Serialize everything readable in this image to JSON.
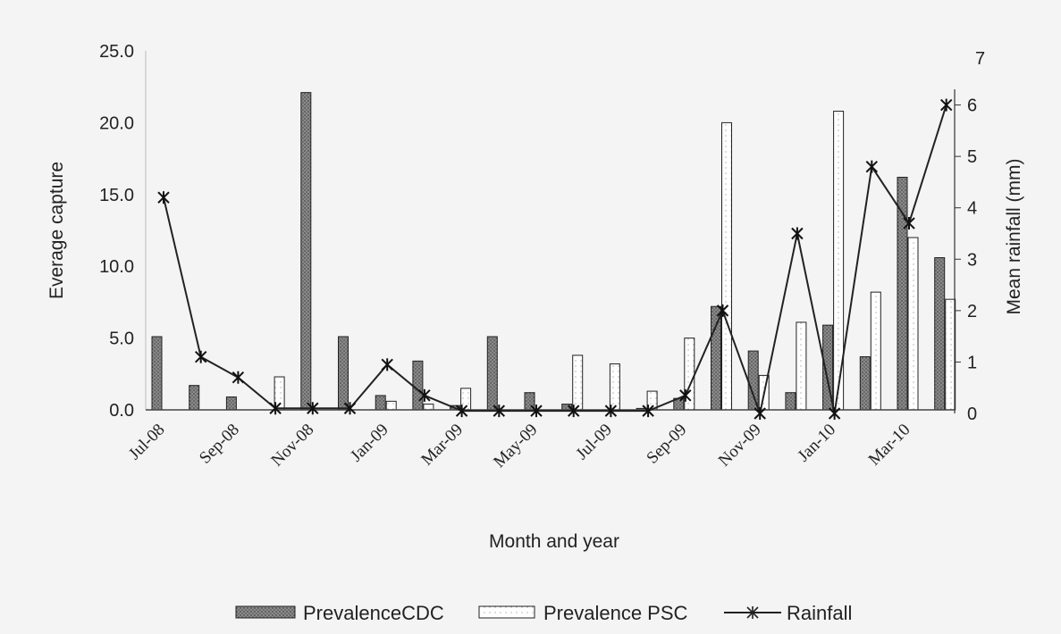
{
  "chart_data": {
    "type": "bar",
    "xlabel": "Month and year",
    "ylabel": "Everage capture",
    "y2label": "Mean rainfall (mm)",
    "ylim": [
      0,
      25
    ],
    "y2lim": [
      0,
      7
    ],
    "yticks": [
      "0.0",
      "5.0",
      "10.0",
      "15.0",
      "20.0",
      "25.0"
    ],
    "y2ticks": [
      "0",
      "1",
      "2",
      "3",
      "4",
      "5",
      "6",
      "7"
    ],
    "categories": [
      "Jul-08",
      "Aug-08",
      "Sep-08",
      "Oct-08",
      "Nov-08",
      "Dec-08",
      "Jan-09",
      "Feb-09",
      "Mar-09",
      "Apr-09",
      "May-09",
      "Jun-09",
      "Jul-09",
      "Aug-09",
      "Sep-09",
      "Oct-09",
      "Nov-09",
      "Dec-09",
      "Jan-10",
      "Feb-10",
      "Mar-10",
      "Apr-10"
    ],
    "x_tick_labels": [
      {
        "index": 0,
        "label": "Jul-08"
      },
      {
        "index": 2,
        "label": "Sep-08"
      },
      {
        "index": 4,
        "label": "Nov-08"
      },
      {
        "index": 6,
        "label": "Jan-09"
      },
      {
        "index": 8,
        "label": "Mar-09"
      },
      {
        "index": 10,
        "label": "May-09"
      },
      {
        "index": 12,
        "label": "Jul-09"
      },
      {
        "index": 14,
        "label": "Sep-09"
      },
      {
        "index": 16,
        "label": "Nov-09"
      },
      {
        "index": 18,
        "label": "Jan-10"
      },
      {
        "index": 20,
        "label": "Mar-10"
      }
    ],
    "series": [
      {
        "name": "PrevalenceCDC",
        "kind": "bar",
        "axis": "left",
        "values": [
          5.1,
          1.7,
          0.9,
          0.0,
          22.1,
          5.1,
          1.0,
          3.4,
          0.3,
          5.1,
          1.2,
          0.4,
          0.0,
          0.1,
          0.8,
          7.2,
          4.1,
          1.2,
          5.9,
          3.7,
          16.2,
          10.6
        ]
      },
      {
        "name": "Prevalence PSC",
        "kind": "bar",
        "axis": "left",
        "values": [
          0.0,
          0.0,
          0.0,
          2.3,
          0.0,
          0.0,
          0.6,
          0.4,
          1.5,
          0.0,
          0.0,
          3.8,
          3.2,
          1.3,
          5.0,
          20.0,
          2.4,
          6.1,
          20.8,
          8.2,
          12.0,
          7.7
        ]
      },
      {
        "name": "Rainfall",
        "kind": "line",
        "axis": "right",
        "values": [
          4.2,
          1.1,
          0.7,
          0.1,
          0.1,
          0.1,
          0.95,
          0.35,
          0.05,
          0.05,
          0.05,
          0.05,
          0.05,
          0.05,
          0.35,
          2.0,
          0.0,
          3.5,
          0.0,
          4.8,
          3.7,
          6.0
        ]
      }
    ],
    "legend_position": "bottom",
    "grid": false,
    "colors": {
      "cdc_fill": "#7a7a7a",
      "psc_fill": "#ffffff",
      "line": "#222222",
      "background": "#f4f4f4"
    }
  }
}
